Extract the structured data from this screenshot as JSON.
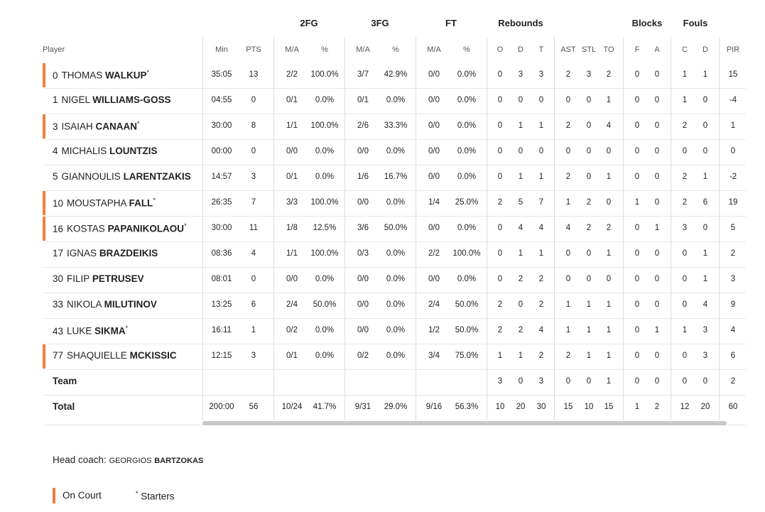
{
  "table": {
    "group_headers": [
      "2FG",
      "3FG",
      "FT",
      "Rebounds",
      "Blocks",
      "Fouls"
    ],
    "columns": [
      "Player",
      "Min",
      "PTS",
      "M/A",
      "%",
      "M/A",
      "%",
      "M/A",
      "%",
      "O",
      "D",
      "T",
      "AST",
      "STL",
      "TO",
      "F",
      "A",
      "C",
      "D",
      "PIR"
    ],
    "rows": [
      {
        "number": 0,
        "first": "THOMAS",
        "last": "WALKUP",
        "starter": true,
        "on_court": true,
        "stats": [
          "35:05",
          13,
          "2/2",
          "100.0%",
          "3/7",
          "42.9%",
          "0/0",
          "0.0%",
          0,
          3,
          3,
          2,
          3,
          2,
          0,
          0,
          1,
          1,
          15
        ]
      },
      {
        "number": 1,
        "first": "NIGEL",
        "last": "WILLIAMS-GOSS",
        "starter": false,
        "on_court": false,
        "stats": [
          "04:55",
          0,
          "0/1",
          "0.0%",
          "0/1",
          "0.0%",
          "0/0",
          "0.0%",
          0,
          0,
          0,
          0,
          0,
          1,
          0,
          0,
          1,
          0,
          -4
        ]
      },
      {
        "number": 3,
        "first": "ISAIAH",
        "last": "CANAAN",
        "starter": true,
        "on_court": true,
        "stats": [
          "30:00",
          8,
          "1/1",
          "100.0%",
          "2/6",
          "33.3%",
          "0/0",
          "0.0%",
          0,
          1,
          1,
          2,
          0,
          4,
          0,
          0,
          2,
          0,
          1
        ]
      },
      {
        "number": 4,
        "first": "MICHALIS",
        "last": "LOUNTZIS",
        "starter": false,
        "on_court": false,
        "stats": [
          "00:00",
          0,
          "0/0",
          "0.0%",
          "0/0",
          "0.0%",
          "0/0",
          "0.0%",
          0,
          0,
          0,
          0,
          0,
          0,
          0,
          0,
          0,
          0,
          0
        ]
      },
      {
        "number": 5,
        "first": "GIANNOULIS",
        "last": "LARENTZAKIS",
        "starter": false,
        "on_court": false,
        "stats": [
          "14:57",
          3,
          "0/1",
          "0.0%",
          "1/6",
          "16.7%",
          "0/0",
          "0.0%",
          0,
          1,
          1,
          2,
          0,
          1,
          0,
          0,
          2,
          1,
          -2
        ]
      },
      {
        "number": 10,
        "first": "MOUSTAPHA",
        "last": "FALL",
        "starter": true,
        "on_court": true,
        "stats": [
          "26:35",
          7,
          "3/3",
          "100.0%",
          "0/0",
          "0.0%",
          "1/4",
          "25.0%",
          2,
          5,
          7,
          1,
          2,
          0,
          1,
          0,
          2,
          6,
          19
        ]
      },
      {
        "number": 16,
        "first": "KOSTAS",
        "last": "PAPANIKOLAOU",
        "starter": true,
        "on_court": true,
        "stats": [
          "30:00",
          11,
          "1/8",
          "12.5%",
          "3/6",
          "50.0%",
          "0/0",
          "0.0%",
          0,
          4,
          4,
          4,
          2,
          2,
          0,
          1,
          3,
          0,
          5
        ]
      },
      {
        "number": 17,
        "first": "IGNAS",
        "last": "BRAZDEIKIS",
        "starter": false,
        "on_court": false,
        "stats": [
          "08:36",
          4,
          "1/1",
          "100.0%",
          "0/3",
          "0.0%",
          "2/2",
          "100.0%",
          0,
          1,
          1,
          0,
          0,
          1,
          0,
          0,
          0,
          1,
          2
        ]
      },
      {
        "number": 30,
        "first": "FILIP",
        "last": "PETRUSEV",
        "starter": false,
        "on_court": false,
        "stats": [
          "08:01",
          0,
          "0/0",
          "0.0%",
          "0/0",
          "0.0%",
          "0/0",
          "0.0%",
          0,
          2,
          2,
          0,
          0,
          0,
          0,
          0,
          0,
          1,
          3
        ]
      },
      {
        "number": 33,
        "first": "NIKOLA",
        "last": "MILUTINOV",
        "starter": false,
        "on_court": false,
        "stats": [
          "13:25",
          6,
          "2/4",
          "50.0%",
          "0/0",
          "0.0%",
          "2/4",
          "50.0%",
          2,
          0,
          2,
          1,
          1,
          1,
          0,
          0,
          0,
          4,
          9
        ]
      },
      {
        "number": 43,
        "first": "LUKE",
        "last": "SIKMA",
        "starter": true,
        "on_court": false,
        "stats": [
          "16:11",
          1,
          "0/2",
          "0.0%",
          "0/0",
          "0.0%",
          "1/2",
          "50.0%",
          2,
          2,
          4,
          1,
          1,
          1,
          0,
          1,
          1,
          3,
          4
        ]
      },
      {
        "number": 77,
        "first": "SHAQUIELLE",
        "last": "MCKISSIC",
        "starter": false,
        "on_court": true,
        "stats": [
          "12:15",
          3,
          "0/1",
          "0.0%",
          "0/2",
          "0.0%",
          "3/4",
          "75.0%",
          1,
          1,
          2,
          2,
          1,
          1,
          0,
          0,
          0,
          3,
          6
        ]
      }
    ],
    "team": {
      "label": "Team",
      "stats": [
        null,
        null,
        null,
        null,
        null,
        null,
        null,
        null,
        3,
        0,
        3,
        0,
        0,
        1,
        0,
        0,
        0,
        0,
        2
      ]
    },
    "total": {
      "label": "Total",
      "stats": [
        "200:00",
        56,
        "10/24",
        "41.7%",
        "9/31",
        "29.0%",
        "9/16",
        "56.3%",
        10,
        20,
        30,
        15,
        10,
        15,
        1,
        2,
        12,
        20,
        60
      ]
    }
  },
  "coach": {
    "label": "Head coach:",
    "first": "GEORGIOS",
    "last": "BARTZOKAS"
  },
  "legend": {
    "on_court": "On Court",
    "starter_mark": "*",
    "starters": "Starters"
  }
}
